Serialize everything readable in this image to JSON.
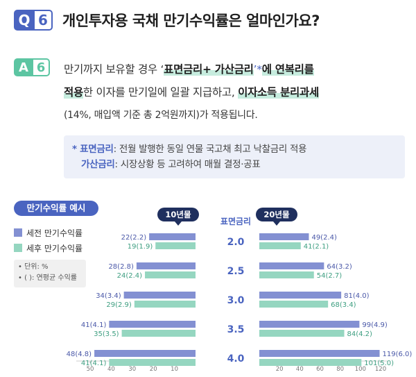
{
  "question": {
    "letter": "Q",
    "number": "6",
    "title": "개인투자용 국채 만기수익률은 얼마인가요?"
  },
  "answer": {
    "letter": "A",
    "number": "6",
    "line1_pre": "만기까지 보유할 경우 ‘",
    "line1_hl": "표면금리+ 가산금리",
    "line1_star": "’*",
    "line1_hl2": "에 연복리를",
    "line2_hl": "적용",
    "line2_mid": "한 이자를 만기일에 일괄 지급하고, ",
    "line2_hl2": "이자소득 분리과세",
    "line3": "(14%, 매입액 기준 총 2억원까지)가 적용됩니다."
  },
  "note": {
    "star": "* ",
    "k1": "표면금리",
    "v1": ": 전월 발행한 동일 연물 국고채 최고 낙찰금리 적용",
    "k2": "가산금리",
    "v2": ": 시장상황 등 고려하여 매월 결정·공표"
  },
  "example": {
    "title": "만기수익률 예시",
    "legend": [
      "세전 만기수익률",
      "세후 만기수익률"
    ],
    "note1": "• 단위: %",
    "note2": "• (   ): 연평균 수익률"
  },
  "colors": {
    "pretax": "#8390d2",
    "posttax": "#95d6c0",
    "accent_blue": "#4a64c0",
    "accent_green": "#5cc5a2",
    "pill": "#1f2f5e"
  },
  "chart_data": [
    {
      "type": "bar",
      "title": "10년물",
      "center_label": "표면금리",
      "categories": [
        "2.0",
        "2.5",
        "3.0",
        "3.5",
        "4.0"
      ],
      "series": [
        {
          "name": "세전 만기수익률",
          "values": [
            22,
            28,
            34,
            41,
            48
          ],
          "labels": [
            "22(2.2)",
            "28(2.8)",
            "34(3.4)",
            "41(4.1)",
            "48(4.8)"
          ]
        },
        {
          "name": "세후 만기수익률",
          "values": [
            19,
            24,
            29,
            35,
            41
          ],
          "labels": [
            "19(1.9)",
            "24(2.4)",
            "29(2.9)",
            "35(3.5)",
            "41(4.1)"
          ]
        }
      ],
      "ticks": [
        "50",
        "40",
        "30",
        "20",
        "10"
      ],
      "xlim": [
        0,
        50
      ]
    },
    {
      "type": "bar",
      "title": "20년물",
      "categories": [
        "2.0",
        "2.5",
        "3.0",
        "3.5",
        "4.0"
      ],
      "series": [
        {
          "name": "세전 만기수익률",
          "values": [
            49,
            64,
            81,
            99,
            119
          ],
          "labels": [
            "49(2.4)",
            "64(3.2)",
            "81(4.0)",
            "99(4.9)",
            "119(6.0)"
          ]
        },
        {
          "name": "세후 만기수익률",
          "values": [
            41,
            54,
            68,
            84,
            101
          ],
          "labels": [
            "41(2.1)",
            "54(2.7)",
            "68(3.4)",
            "84(4.2)",
            "101(5.0)"
          ]
        }
      ],
      "ticks": [
        "20",
        "40",
        "60",
        "80",
        "100",
        "120"
      ],
      "xlim": [
        0,
        120
      ]
    }
  ]
}
